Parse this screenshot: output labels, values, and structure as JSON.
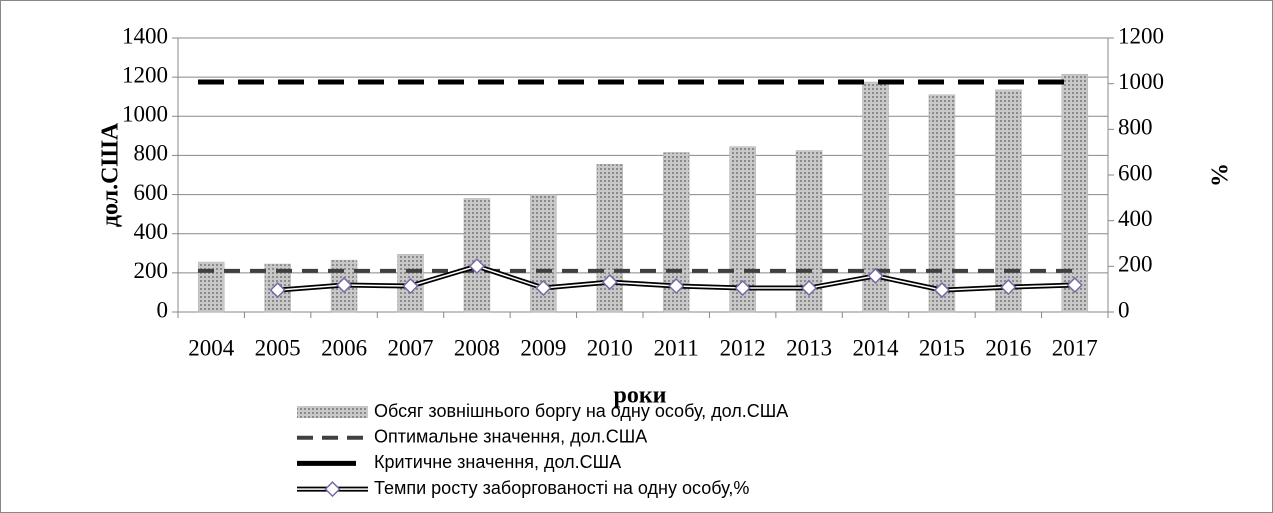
{
  "chart_data": {
    "type": "bar",
    "x_label": "роки",
    "y_label": "дол.США",
    "y2_label": "%",
    "categories": [
      "2004",
      "2005",
      "2006",
      "2007",
      "2008",
      "2009",
      "2010",
      "2011",
      "2012",
      "2013",
      "2014",
      "2015",
      "2016",
      "2017"
    ],
    "ylim": [
      0,
      1400
    ],
    "yticks": [
      0,
      200,
      400,
      600,
      800,
      1000,
      1200,
      1400
    ],
    "y2lim": [
      0,
      1200
    ],
    "y2ticks": [
      0,
      200,
      400,
      600,
      800,
      1000,
      1200
    ],
    "series": [
      {
        "name": "Обсяг зовнішнього боргу на одну особу, дол.США",
        "type": "bar",
        "color": "#b0b0b0",
        "values": [
          255,
          245,
          265,
          295,
          580,
          600,
          755,
          815,
          845,
          825,
          1175,
          1110,
          1135,
          1215
        ]
      },
      {
        "name": "Оптимальне значення, дол.США",
        "type": "line",
        "dash": "16 10",
        "color": "#404040",
        "values": [
          210,
          210,
          210,
          210,
          210,
          210,
          210,
          210,
          210,
          210,
          210,
          210,
          210,
          210
        ]
      },
      {
        "name": "Критичне значення, дол.США",
        "type": "line",
        "dash": "26 14",
        "color": "#000000",
        "values": [
          1175,
          1175,
          1175,
          1175,
          1175,
          1175,
          1175,
          1175,
          1175,
          1175,
          1175,
          1175,
          1175,
          1175
        ]
      },
      {
        "name": "Темпи росту заборгованості на одну особу,%",
        "type": "line",
        "axis": "y2",
        "marker": "diamond",
        "color": "#000000",
        "values": [
          null,
          96,
          118,
          114,
          201,
          105,
          131,
          114,
          105,
          105,
          158,
          96,
          109,
          118
        ]
      }
    ]
  }
}
